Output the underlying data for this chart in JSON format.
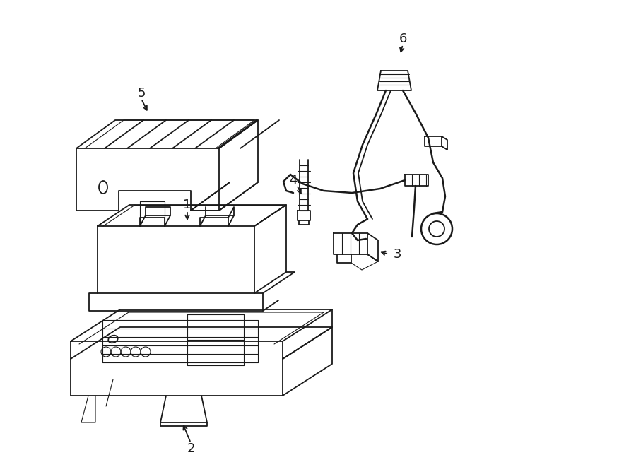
{
  "bg_color": "#ffffff",
  "line_color": "#1a1a1a",
  "lw": 1.3,
  "lw_thick": 1.8,
  "lw_thin": 0.8,
  "label_fs": 13,
  "fig_w": 9.0,
  "fig_h": 6.61,
  "dpi": 100
}
